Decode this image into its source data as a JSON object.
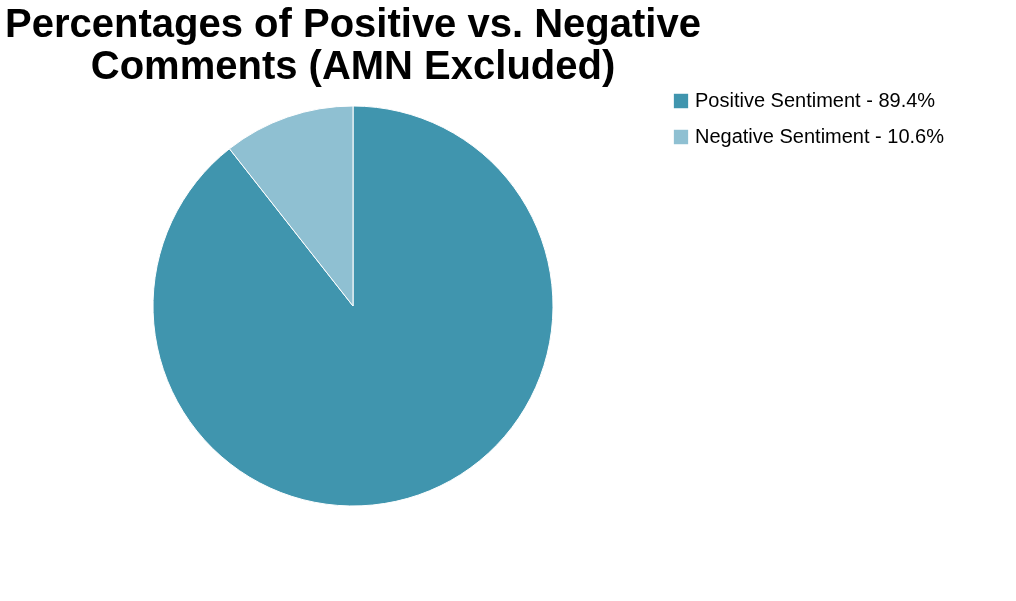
{
  "chart_data": {
    "type": "pie",
    "title": "Percentages of Positive vs. Negative Comments (AMN Excluded)",
    "categories": [
      "Positive Sentiment - 89.4%",
      "Negative Sentiment - 10.6%"
    ],
    "values": [
      89.4,
      10.6
    ],
    "colors": [
      "#4095ae",
      "#8fc0d2"
    ],
    "legend": "right"
  }
}
